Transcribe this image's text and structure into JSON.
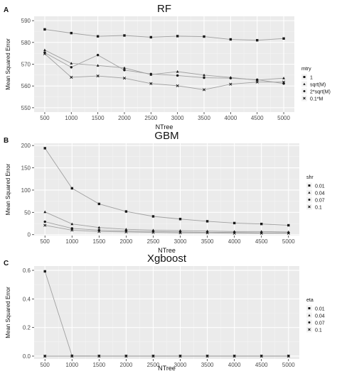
{
  "chart_data": [
    {
      "panel_label": "A",
      "title": "RF",
      "type": "line",
      "xlabel": "NTree",
      "ylabel": "Mean Squared Error",
      "x": [
        500,
        1000,
        1500,
        2000,
        2500,
        3000,
        3500,
        4000,
        4500,
        5000
      ],
      "xticks": [
        "500",
        "1000",
        "1500",
        "2000",
        "2500",
        "3000",
        "3500",
        "4000",
        "4500",
        "5000"
      ],
      "ylim": [
        548,
        592
      ],
      "yticks": [
        "550",
        "560",
        "570",
        "580",
        "590"
      ],
      "grid": true,
      "legend_position": "right",
      "legend_title": "mtry",
      "series": [
        {
          "name": "1",
          "marker": "square",
          "values": [
            586.0,
            584.3,
            582.8,
            583.2,
            582.4,
            582.9,
            582.7,
            581.4,
            581.0,
            581.8
          ]
        },
        {
          "name": "sqrt(M)",
          "marker": "triangle",
          "values": [
            576.5,
            570.4,
            569.4,
            568.3,
            565.2,
            566.6,
            565.0,
            563.9,
            562.7,
            563.6
          ]
        },
        {
          "name": "2*sqrt(M)",
          "marker": "circle",
          "values": [
            575.3,
            568.6,
            574.2,
            567.3,
            565.5,
            564.8,
            563.8,
            563.6,
            562.9,
            561.1
          ]
        },
        {
          "name": "0.1*M",
          "marker": "cross",
          "values": [
            574.8,
            564.0,
            564.6,
            563.6,
            561.1,
            560.1,
            558.3,
            560.8,
            561.8,
            561.8
          ]
        }
      ]
    },
    {
      "panel_label": "B",
      "title": "GBM",
      "type": "line",
      "xlabel": "NTree",
      "ylabel": "Mean Squared Error",
      "x": [
        500,
        1000,
        1500,
        2000,
        2500,
        3000,
        3500,
        4000,
        4500,
        5000
      ],
      "xticks": [
        "500",
        "1000",
        "1500",
        "2000",
        "2500",
        "3000",
        "3500",
        "4000",
        "4500",
        "5000"
      ],
      "ylim": [
        -2,
        205
      ],
      "yticks": [
        "0",
        "50",
        "100",
        "150",
        "200"
      ],
      "grid": true,
      "legend_position": "right",
      "legend_title": "shr",
      "series": [
        {
          "name": "0.01",
          "marker": "square",
          "values": [
            194,
            104,
            69,
            52,
            41,
            35,
            30,
            26,
            24,
            21
          ]
        },
        {
          "name": "0.04",
          "marker": "triangle",
          "values": [
            51,
            24,
            16,
            12,
            10,
            9,
            8,
            7,
            7,
            6
          ]
        },
        {
          "name": "0.07",
          "marker": "circle",
          "values": [
            29,
            14,
            10,
            8,
            7,
            6,
            5,
            5,
            4,
            4
          ]
        },
        {
          "name": "0.1",
          "marker": "cross",
          "values": [
            21,
            10,
            7,
            6,
            5,
            4,
            4,
            3,
            3,
            3
          ]
        }
      ]
    },
    {
      "panel_label": "C",
      "title": "Xgboost",
      "type": "line",
      "xlabel": "NTree",
      "ylabel": "Mean Squared Error",
      "x": [
        500,
        1000,
        1500,
        2000,
        2500,
        3000,
        3500,
        4000,
        4500,
        5000
      ],
      "xticks": [
        "500",
        "1000",
        "1500",
        "2000",
        "2500",
        "3000",
        "3500",
        "4000",
        "4500",
        "5000"
      ],
      "ylim": [
        -0.02,
        0.63
      ],
      "yticks": [
        "0.0",
        "0.2",
        "0.4",
        "0.6"
      ],
      "grid": true,
      "legend_position": "right",
      "legend_title": "eta",
      "series": [
        {
          "name": "0.01",
          "marker": "square",
          "values": [
            0.593,
            0.002,
            0.001,
            0.001,
            0.001,
            0.001,
            0.001,
            0.001,
            0.001,
            0.001
          ]
        },
        {
          "name": "0.04",
          "marker": "triangle",
          "values": [
            0.0,
            0.0,
            0.0,
            0.0,
            0.0,
            0.0,
            0.0,
            0.0,
            0.0,
            0.0
          ]
        },
        {
          "name": "0.07",
          "marker": "circle",
          "values": [
            0.0,
            0.0,
            0.0,
            0.0,
            0.0,
            0.0,
            0.0,
            0.0,
            0.0,
            0.0
          ]
        },
        {
          "name": "0.1",
          "marker": "cross",
          "values": [
            0.0,
            0.0,
            0.0,
            0.0,
            0.0,
            0.0,
            0.0,
            0.0,
            0.0,
            0.0
          ]
        }
      ]
    }
  ],
  "colors": {
    "panel_background": "#ebebeb",
    "grid_major": "#ffffff",
    "grid_minor": "#f4f4f4",
    "line": "#a0a0a0",
    "point": "#1a1a1a",
    "axis_text": "#4d4d4d",
    "title_text": "#111111"
  }
}
